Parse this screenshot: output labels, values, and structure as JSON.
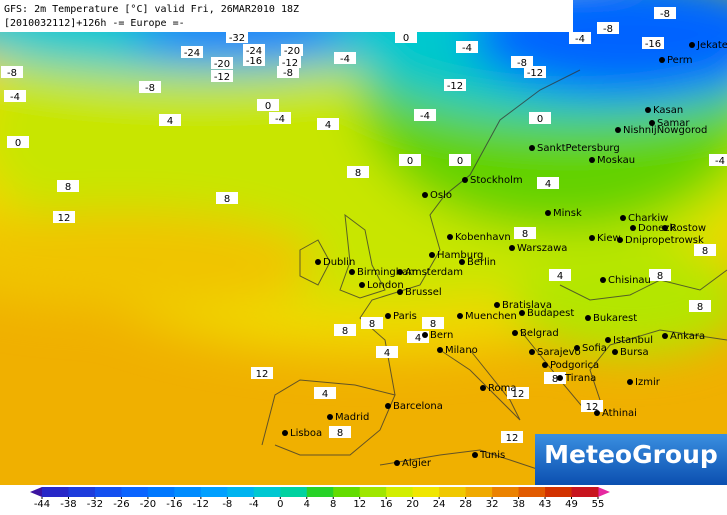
{
  "header": {
    "line1": "GFS: 2m Temperature [°C] valid Fri, 26MAR2010 18Z",
    "line2": "[2010032112]+126h -= Europe =-"
  },
  "logo": "MeteoGroup",
  "cities": [
    "Jekaterinb",
    "Perm",
    "Kasan",
    "Samar",
    "NishnijNowgorod",
    "Moskau",
    "SanktPetersburg",
    "Stockholm",
    "Oslo",
    "Minsk",
    "Kiew",
    "Charkiw",
    "Donezk",
    "Rostow",
    "Dnipropetrowsk",
    "Warszawa",
    "Kobenhavn",
    "Hamburg",
    "Berlin",
    "Dublin",
    "Birmingham",
    "Amsterdam",
    "London",
    "Brussel",
    "Paris",
    "Bratislava",
    "Budapest",
    "Muenchen",
    "Bern",
    "Milano",
    "Belgrad",
    "Sarajevo",
    "Sofia",
    "Bukarest",
    "Chisinau",
    "Istanbul",
    "Bursa",
    "Ankara",
    "Izmir",
    "Athinai",
    "Podgorica",
    "Tirana",
    "Roma",
    "Barcelona",
    "Madrid",
    "Lisboa",
    "Algier",
    "Tunis"
  ],
  "isotherm_labels": [
    -24,
    -20,
    -24,
    -20,
    -16,
    -12,
    -8,
    -12,
    -32,
    -4,
    0,
    -8,
    -4,
    -8,
    -4,
    0,
    4,
    4,
    0,
    8,
    12,
    8,
    8,
    0,
    -4,
    -12,
    -4,
    -8,
    -12,
    -4,
    -8,
    -16,
    -8,
    -4,
    0,
    0,
    4,
    4,
    8,
    8,
    12,
    12,
    12,
    8,
    4,
    4,
    8,
    4,
    8,
    12,
    8,
    8,
    8,
    8
  ],
  "color_scale": {
    "ticks": [
      -44,
      -38,
      -32,
      -26,
      -20,
      -16,
      -12,
      -8,
      -4,
      0,
      4,
      8,
      12,
      16,
      20,
      24,
      28,
      32,
      38,
      43,
      49,
      55
    ],
    "colors": [
      "#3c14a0",
      "#2828c8",
      "#1e3cdc",
      "#1450f0",
      "#0a64ff",
      "#0078ff",
      "#008cff",
      "#00a0ff",
      "#00b4f0",
      "#00c8d2",
      "#00d2a0",
      "#28d228",
      "#64dc00",
      "#a0e600",
      "#d2ee00",
      "#f0e600",
      "#f0c800",
      "#f0aa00",
      "#eb8200",
      "#e15a00",
      "#d23200",
      "#c8141e",
      "#e628a0"
    ]
  }
}
